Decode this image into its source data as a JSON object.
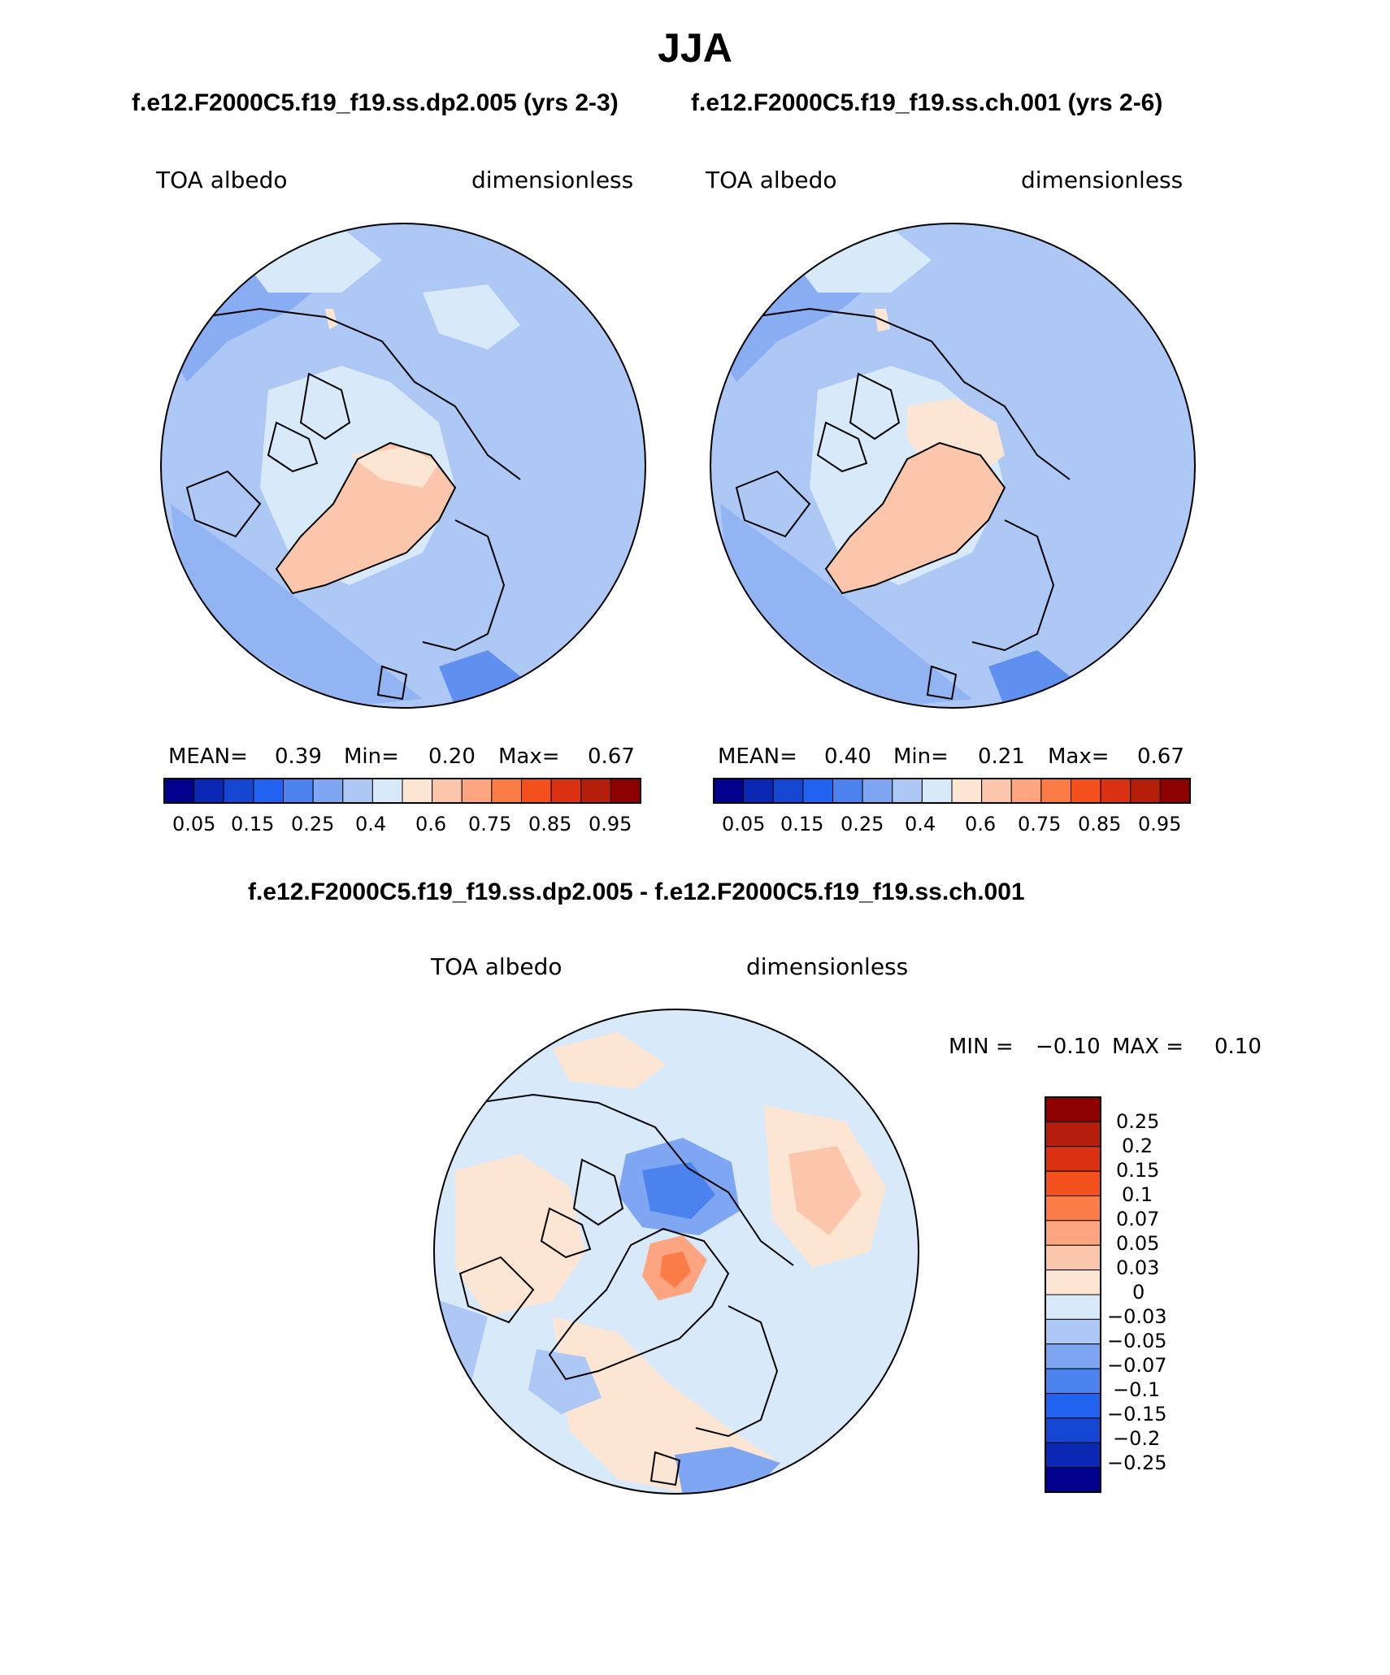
{
  "title": "JJA",
  "panels": [
    {
      "case": "f.e12.F2000C5.f19_f19.ss.dp2.005 (yrs 2-3)",
      "variable": "TOA albedo",
      "units": "dimensionless",
      "mean_label": "MEAN=",
      "mean_value": "0.39",
      "min_label": "Min=",
      "min_value": "0.20",
      "max_label": "Max=",
      "max_value": "0.67"
    },
    {
      "case": "f.e12.F2000C5.f19_f19.ss.ch.001 (yrs 2-6)",
      "variable": "TOA albedo",
      "units": "dimensionless",
      "mean_label": "MEAN=",
      "mean_value": "0.40",
      "min_label": "Min=",
      "min_value": "0.21",
      "max_label": "Max=",
      "max_value": "0.67"
    }
  ],
  "abs_colorbar": {
    "colors": [
      "#00008c",
      "#0a28b4",
      "#1446d2",
      "#2262f0",
      "#4b82ee",
      "#7ea6f2",
      "#aec8f6",
      "#d8e9fa",
      "#fde5d4",
      "#fcc6ac",
      "#fca580",
      "#fc7c48",
      "#f4501e",
      "#dc3214",
      "#b41e0a",
      "#8c0000"
    ],
    "tick_labels": [
      "0.05",
      "0.15",
      "0.25",
      "0.4",
      "0.6",
      "0.75",
      "0.85",
      "0.95"
    ]
  },
  "diff": {
    "title": "f.e12.F2000C5.f19_f19.ss.dp2.005 - f.e12.F2000C5.f19_f19.ss.ch.001",
    "variable": "TOA albedo",
    "units": "dimensionless",
    "min_label": "MIN =",
    "min_value": "−0.10",
    "max_label": "MAX =",
    "max_value": "0.10",
    "colorbar_top_to_bottom": [
      "#8c0000",
      "#b41e0a",
      "#dc3214",
      "#f4501e",
      "#fc7c48",
      "#fca580",
      "#fcc6ac",
      "#fde5d4",
      "#d8e9fa",
      "#aec8f6",
      "#7ea6f2",
      "#4b82ee",
      "#2262f0",
      "#1446d2",
      "#0a28b4",
      "#00008c"
    ],
    "tick_labels": [
      "0.25",
      "0.2",
      "0.15",
      "0.1",
      "0.07",
      "0.05",
      "0.03",
      "0",
      "−0.03",
      "−0.05",
      "−0.07",
      "−0.1",
      "−0.15",
      "−0.2",
      "−0.25"
    ]
  }
}
